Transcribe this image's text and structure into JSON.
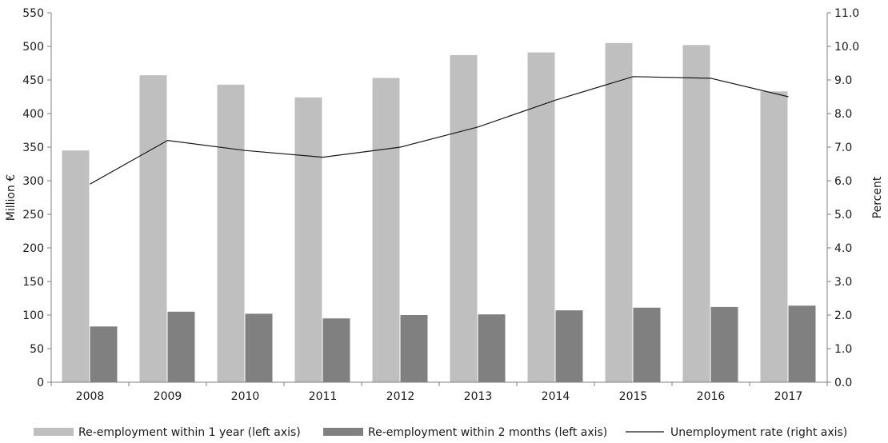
{
  "chart_data": {
    "type": "bar",
    "categories": [
      "2008",
      "2009",
      "2010",
      "2011",
      "2012",
      "2013",
      "2014",
      "2015",
      "2016",
      "2017"
    ],
    "series": [
      {
        "name": "Re-employment within 1 year (left axis)",
        "type": "bar",
        "axis": "left",
        "color": "#bfbfbf",
        "values": [
          345,
          457,
          443,
          424,
          453,
          487,
          491,
          505,
          502,
          433
        ]
      },
      {
        "name": "Re-employment within 2 months (left axis)",
        "type": "bar",
        "axis": "left",
        "color": "#808080",
        "values": [
          83,
          105,
          102,
          95,
          100,
          101,
          107,
          111,
          112,
          114
        ]
      },
      {
        "name": "Unemployment rate (right axis)",
        "type": "line",
        "axis": "right",
        "color": "#1a1a1a",
        "values": [
          5.9,
          7.2,
          6.9,
          6.7,
          7.0,
          7.6,
          8.4,
          9.1,
          9.05,
          8.5
        ]
      }
    ],
    "left_axis": {
      "label": "Million €",
      "ylim": [
        0,
        550
      ],
      "ticks": [
        "0",
        "50",
        "100",
        "150",
        "200",
        "250",
        "300",
        "350",
        "400",
        "450",
        "500",
        "550"
      ]
    },
    "right_axis": {
      "label": "Percent",
      "ylim": [
        0,
        11
      ],
      "ticks": [
        "0.0",
        "1.0",
        "2.0",
        "3.0",
        "4.0",
        "5.0",
        "6.0",
        "7.0",
        "8.0",
        "9.0",
        "10.0",
        "11.0"
      ]
    },
    "grid": false,
    "legend_position": "bottom"
  }
}
